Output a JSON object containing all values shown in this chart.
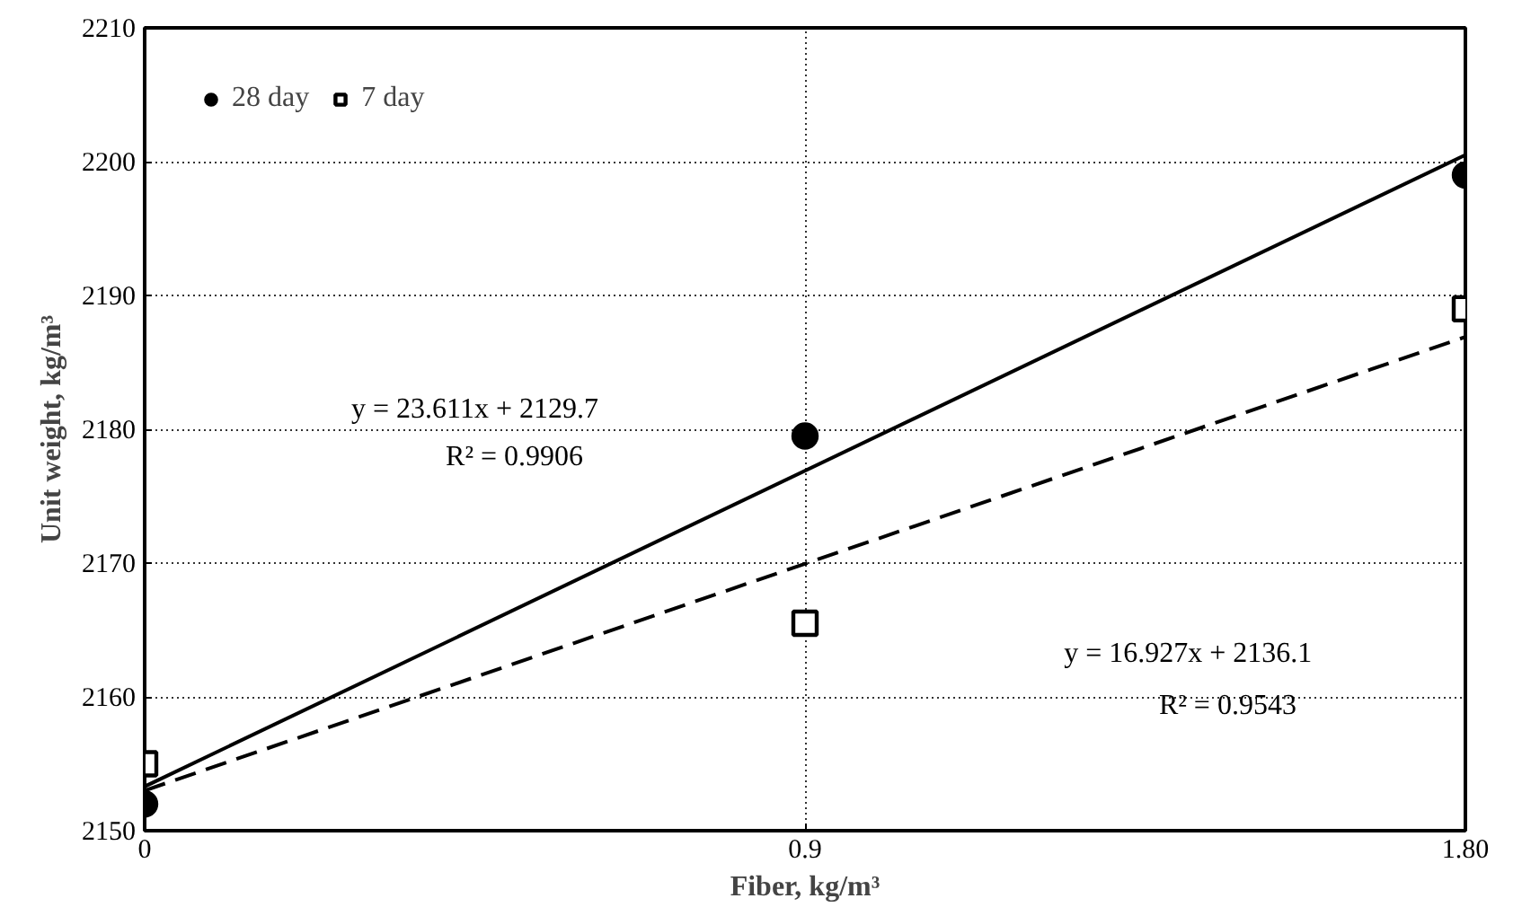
{
  "chart_data": {
    "type": "scatter",
    "xlabel": "Fiber, kg/m³",
    "ylabel": "Unit weight, kg/m³",
    "xlim": [
      0,
      1.8
    ],
    "xticks": [
      0,
      0.9,
      {
        "value": 1.8,
        "label": "1.80"
      }
    ],
    "ylim": [
      2150,
      2210
    ],
    "yticks": [
      2150,
      2160,
      2170,
      2180,
      2190,
      2200,
      2210
    ],
    "grid": true,
    "legend": "top left",
    "series": [
      {
        "name": "28 day",
        "color": "#000000",
        "marker": "circle",
        "x": [
          0,
          0.9,
          1.8
        ],
        "values": [
          2152,
          2179.5,
          2199
        ]
      },
      {
        "name": "7 day",
        "color": "#000000",
        "marker": "square",
        "x": [
          0,
          0.9,
          1.8
        ],
        "values": [
          2155,
          2165.5,
          2189
        ]
      },
      {
        "type": "line",
        "color": "#000000",
        "line_style": "solid",
        "marker": "none",
        "x": [
          0,
          1.8
        ],
        "values": [
          2153.3,
          2200.5
        ]
      },
      {
        "type": "line",
        "color": "#000000",
        "line_style": "dashed",
        "marker": "none",
        "x": [
          0,
          1.8
        ],
        "values": [
          2153,
          2186.9
        ]
      }
    ],
    "annotations": [
      "y = 23.611x + 2129.7",
      "R² = 0.9906",
      "y = 16.927x + 2136.1",
      "R² = 0.9543"
    ]
  }
}
